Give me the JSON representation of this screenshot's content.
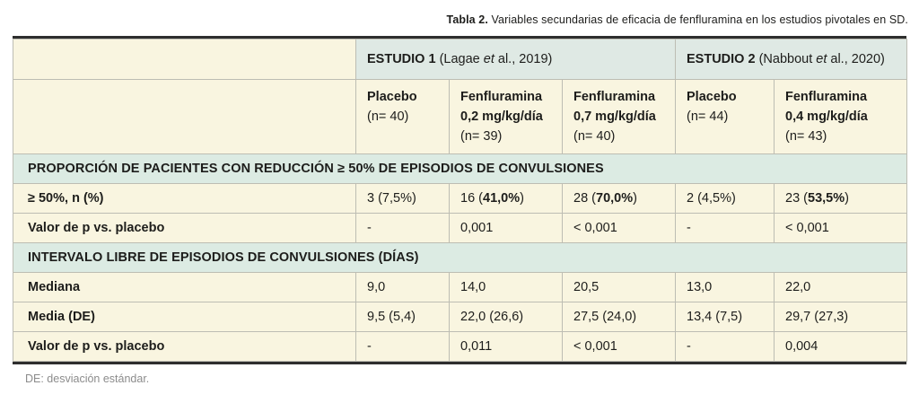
{
  "colors": {
    "cream_cell": "#f9f5e0",
    "teal_study_header": "#dfe9e4",
    "teal_section_band": "#dcebe3",
    "grid_border": "#bdbdb3",
    "heavy_rule": "#2e2e2e",
    "text": "#1d1d1b",
    "footnote_text": "#8c8c8c"
  },
  "title": {
    "label": "Tabla 2.",
    "text": " Variables secundarias de eficacia de fenfluramina en los estudios pivotales en SD."
  },
  "studies": [
    {
      "name": "ESTUDIO 1",
      "ref": " (Lagae *et* al., 2019)"
    },
    {
      "name": "ESTUDIO 2",
      "ref": " (Nabbout *et* al., 2020)"
    }
  ],
  "columns": [
    "**Placebo**\n(n= 40)",
    "**Fenfluramina\n0,2 mg/kg/día**\n(n= 39)",
    "**Fenfluramina\n0,7 mg/kg/día**\n(n= 40)",
    "**Placebo**\n(n= 44)",
    "**Fenfluramina\n0,4 mg/kg/día**\n(n= 43)"
  ],
  "sections": [
    {
      "header": "PROPORCIÓN DE PACIENTES CON REDUCCIÓN ≥ 50% DE EPISODIOS DE CONVULSIONES",
      "rows": [
        {
          "label": "≥ 50%, n (%)",
          "values": [
            "3 (7,5%)",
            "16 (**41,0%**)",
            "28 (**70,0%**)",
            "2 (4,5%)",
            "23 (**53,5%**)"
          ]
        },
        {
          "label": "Valor de p vs. placebo",
          "values": [
            "-",
            "0,001",
            "< 0,001",
            "-",
            "< 0,001"
          ]
        }
      ]
    },
    {
      "header": "INTERVALO LIBRE DE EPISODIOS DE CONVULSIONES (DÍAS)",
      "rows": [
        {
          "label": "Mediana",
          "values": [
            "9,0",
            "14,0",
            "20,5",
            "13,0",
            "22,0"
          ]
        },
        {
          "label": "Media (DE)",
          "values": [
            "9,5 (5,4)",
            "22,0 (26,6)",
            "27,5 (24,0)",
            "13,4 (7,5)",
            "29,7 (27,3)"
          ]
        },
        {
          "label": "Valor de p vs. placebo",
          "values": [
            "-",
            "0,011",
            "< 0,001",
            "-",
            "0,004"
          ]
        }
      ]
    }
  ],
  "footnote": "DE: desviación estándar."
}
